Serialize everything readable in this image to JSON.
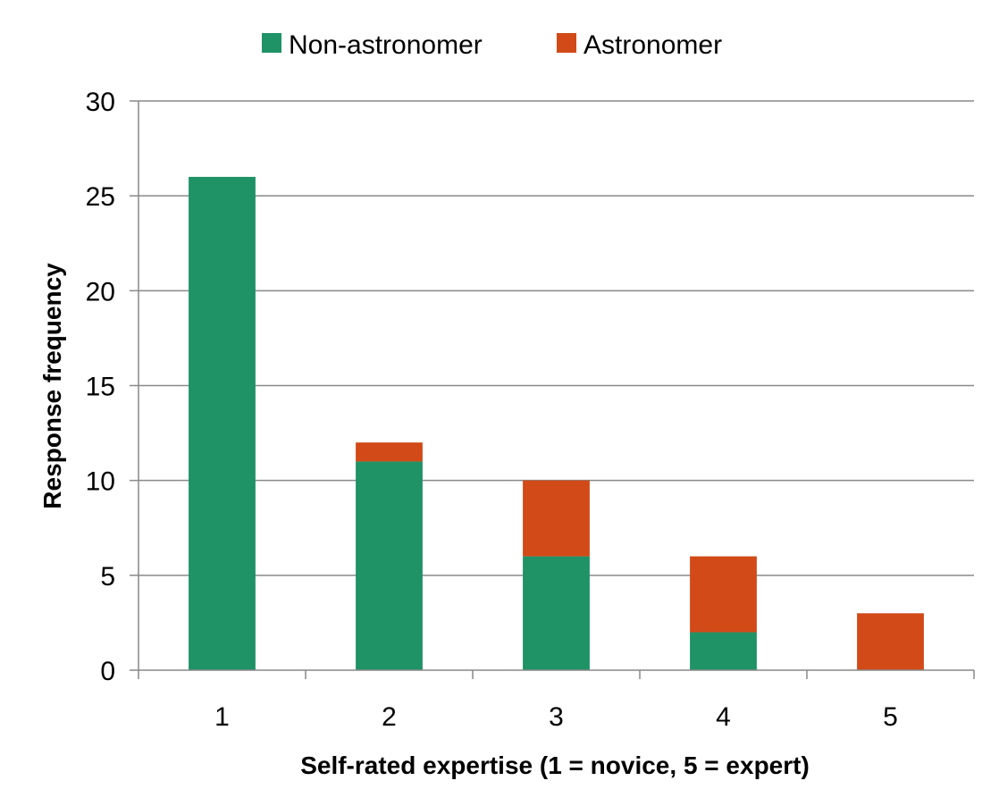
{
  "chart_data": {
    "type": "bar",
    "stacked": true,
    "title": "",
    "xlabel": "Self-rated expertise (1 = novice, 5 = expert)",
    "ylabel": "Response frequency",
    "categories": [
      "1",
      "2",
      "3",
      "4",
      "5"
    ],
    "series": [
      {
        "name": "Non-astronomer",
        "color": "#1f9266",
        "values": [
          26,
          11,
          6,
          2,
          0
        ]
      },
      {
        "name": "Astronomer",
        "color": "#d14a17",
        "values": [
          0,
          1,
          4,
          4,
          3
        ]
      }
    ],
    "ylim": [
      0,
      30
    ],
    "yticks": [
      "0",
      "5",
      "10",
      "15",
      "20",
      "25",
      "30"
    ],
    "grid": true,
    "legend_position": "top-center"
  }
}
